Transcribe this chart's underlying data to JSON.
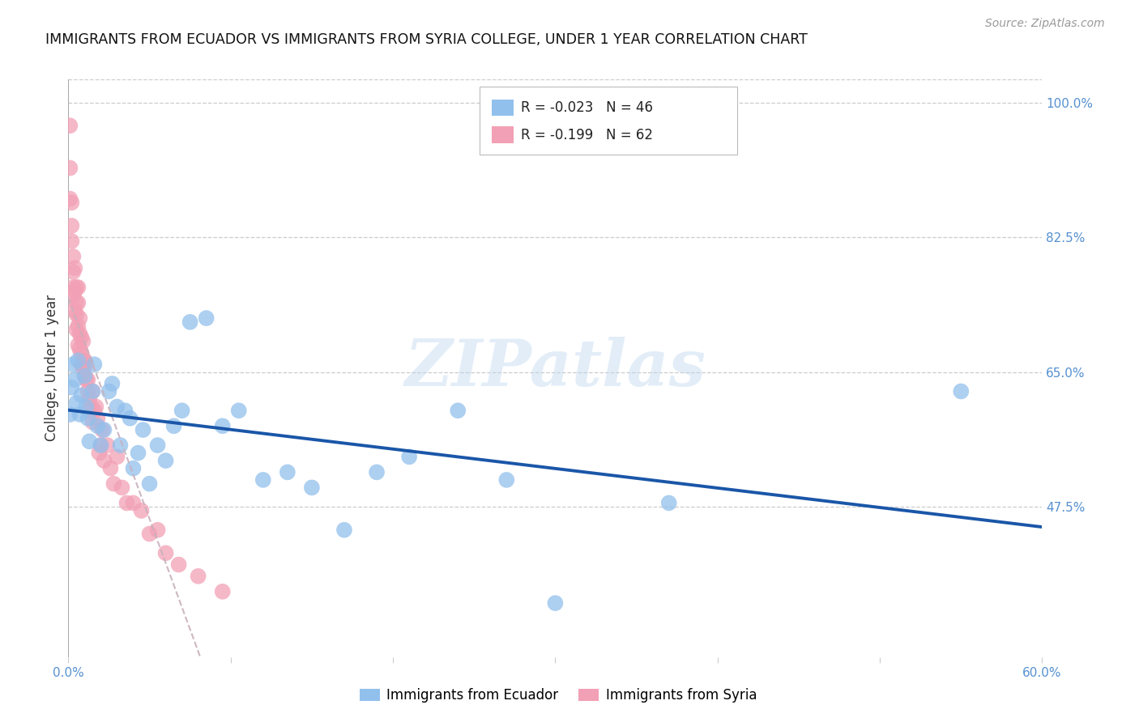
{
  "title": "IMMIGRANTS FROM ECUADOR VS IMMIGRANTS FROM SYRIA COLLEGE, UNDER 1 YEAR CORRELATION CHART",
  "source": "Source: ZipAtlas.com",
  "ylabel": "College, Under 1 year",
  "right_yticks": [
    1.0,
    0.825,
    0.65,
    0.475
  ],
  "right_ytick_labels": [
    "100.0%",
    "82.5%",
    "65.0%",
    "47.5%"
  ],
  "xmin": 0.0,
  "xmax": 0.6,
  "ymin": 0.28,
  "ymax": 1.03,
  "ecuador_color": "#92C0EC",
  "syria_color": "#F2A0B5",
  "ecuador_label": "Immigrants from Ecuador",
  "syria_label": "Immigrants from Syria",
  "ecuador_R": "-0.023",
  "ecuador_N": "46",
  "syria_R": "-0.199",
  "syria_N": "62",
  "ecuador_trendline_color": "#1A56A8",
  "syria_trendline_color": "#D0A0B0",
  "watermark": "ZIPatlas",
  "ecuador_x": [
    0.001,
    0.002,
    0.003,
    0.004,
    0.005,
    0.006,
    0.007,
    0.008,
    0.01,
    0.011,
    0.012,
    0.013,
    0.015,
    0.016,
    0.018,
    0.02,
    0.022,
    0.025,
    0.027,
    0.03,
    0.032,
    0.035,
    0.038,
    0.04,
    0.043,
    0.046,
    0.05,
    0.055,
    0.06,
    0.065,
    0.07,
    0.075,
    0.085,
    0.095,
    0.105,
    0.12,
    0.135,
    0.15,
    0.17,
    0.19,
    0.21,
    0.24,
    0.27,
    0.3,
    0.37,
    0.55
  ],
  "ecuador_y": [
    0.595,
    0.63,
    0.66,
    0.64,
    0.61,
    0.665,
    0.595,
    0.62,
    0.645,
    0.605,
    0.59,
    0.56,
    0.625,
    0.66,
    0.58,
    0.555,
    0.575,
    0.625,
    0.635,
    0.605,
    0.555,
    0.6,
    0.59,
    0.525,
    0.545,
    0.575,
    0.505,
    0.555,
    0.535,
    0.58,
    0.6,
    0.715,
    0.72,
    0.58,
    0.6,
    0.51,
    0.52,
    0.5,
    0.445,
    0.52,
    0.54,
    0.6,
    0.51,
    0.35,
    0.48,
    0.625
  ],
  "syria_x": [
    0.001,
    0.001,
    0.001,
    0.002,
    0.002,
    0.002,
    0.003,
    0.003,
    0.003,
    0.003,
    0.004,
    0.004,
    0.004,
    0.005,
    0.005,
    0.005,
    0.005,
    0.006,
    0.006,
    0.006,
    0.006,
    0.007,
    0.007,
    0.007,
    0.008,
    0.008,
    0.008,
    0.009,
    0.009,
    0.01,
    0.01,
    0.01,
    0.011,
    0.011,
    0.012,
    0.012,
    0.013,
    0.013,
    0.014,
    0.015,
    0.015,
    0.016,
    0.017,
    0.018,
    0.019,
    0.02,
    0.021,
    0.022,
    0.024,
    0.026,
    0.028,
    0.03,
    0.033,
    0.036,
    0.04,
    0.045,
    0.05,
    0.055,
    0.06,
    0.068,
    0.08,
    0.095
  ],
  "syria_y": [
    0.97,
    0.915,
    0.875,
    0.87,
    0.84,
    0.82,
    0.8,
    0.78,
    0.76,
    0.75,
    0.785,
    0.755,
    0.73,
    0.725,
    0.705,
    0.76,
    0.74,
    0.74,
    0.71,
    0.685,
    0.76,
    0.7,
    0.68,
    0.72,
    0.695,
    0.675,
    0.66,
    0.655,
    0.69,
    0.645,
    0.665,
    0.665,
    0.64,
    0.66,
    0.625,
    0.64,
    0.615,
    0.6,
    0.605,
    0.585,
    0.625,
    0.6,
    0.605,
    0.59,
    0.545,
    0.555,
    0.575,
    0.535,
    0.555,
    0.525,
    0.505,
    0.54,
    0.5,
    0.48,
    0.48,
    0.47,
    0.44,
    0.445,
    0.415,
    0.4,
    0.385,
    0.365
  ]
}
